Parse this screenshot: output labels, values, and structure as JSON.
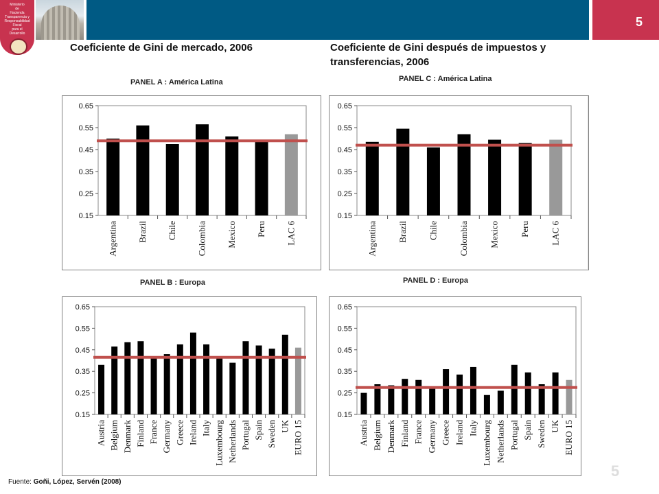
{
  "header": {
    "slide_number": "5",
    "logo_text": "Ministerio\nde\nHacienda\nTransparencia y\nResponsabilidad\nFiscal\npara el\nDesarrollo"
  },
  "titles": {
    "left": "Coeficiente de Gini de mercado, 2006",
    "right": "Coeficiente de Gini después de impuestos y transferencias, 2006"
  },
  "source": {
    "label": "Fuente:",
    "text": "Goñi, López, Servén (2008)"
  },
  "footer_page": "5",
  "colors": {
    "bar": "#000000",
    "aggregate_bar": "#999999",
    "average_line": "#c0504d",
    "header_blue": "#005a84",
    "header_red": "#c8334f"
  },
  "chart_data": [
    {
      "type": "bar",
      "title": "PANEL A : América Latina",
      "categories": [
        "Argentina",
        "Brazil",
        "Chile",
        "Colombia",
        "Mexico",
        "Peru",
        "LAC 6"
      ],
      "values": [
        0.5,
        0.56,
        0.475,
        0.565,
        0.51,
        0.485,
        0.52
      ],
      "highlight_last": true,
      "reference_line": 0.49,
      "ylim": [
        0.15,
        0.65
      ],
      "yticks": [
        "0.15",
        "0.25",
        "0.35",
        "0.45",
        "0.55",
        "0.65"
      ],
      "grid": false
    },
    {
      "type": "bar",
      "title": "PANEL B : Europa",
      "categories": [
        "Austria",
        "Belgium",
        "Denmark",
        "Finland",
        "France",
        "Germany",
        "Greece",
        "Ireland",
        "Italy",
        "Luxembourg",
        "Netherlands",
        "Portugal",
        "Spain",
        "Sweden",
        "UK",
        "EURO 15"
      ],
      "values": [
        0.38,
        0.465,
        0.485,
        0.49,
        0.41,
        0.43,
        0.475,
        0.53,
        0.475,
        0.41,
        0.39,
        0.49,
        0.47,
        0.455,
        0.52,
        0.46
      ],
      "highlight_last": true,
      "reference_line": 0.415,
      "ylim": [
        0.15,
        0.65
      ],
      "yticks": [
        "0.15",
        "0.25",
        "0.35",
        "0.45",
        "0.55",
        "0.65"
      ],
      "grid": false
    },
    {
      "type": "bar",
      "title": "PANEL C : América Latina",
      "categories": [
        "Argentina",
        "Brazil",
        "Chile",
        "Colombia",
        "Mexico",
        "Peru",
        "LAC 6"
      ],
      "values": [
        0.485,
        0.545,
        0.46,
        0.52,
        0.495,
        0.48,
        0.495
      ],
      "highlight_last": true,
      "reference_line": 0.47,
      "ylim": [
        0.15,
        0.65
      ],
      "yticks": [
        "0.15",
        "0.25",
        "0.35",
        "0.45",
        "0.55",
        "0.65"
      ],
      "grid": false
    },
    {
      "type": "bar",
      "title": "PANEL D : Europa",
      "categories": [
        "Austria",
        "Belgium",
        "Denmark",
        "Finland",
        "France",
        "Germany",
        "Greece",
        "Ireland",
        "Italy",
        "Luxembourg",
        "Netherlands",
        "Portugal",
        "Spain",
        "Sweden",
        "UK",
        "EURO 15"
      ],
      "values": [
        0.25,
        0.29,
        0.285,
        0.315,
        0.31,
        0.28,
        0.36,
        0.335,
        0.37,
        0.24,
        0.26,
        0.38,
        0.345,
        0.29,
        0.345,
        0.31
      ],
      "highlight_last": true,
      "reference_line": 0.275,
      "ylim": [
        0.15,
        0.65
      ],
      "yticks": [
        "0.15",
        "0.25",
        "0.35",
        "0.45",
        "0.55",
        "0.65"
      ],
      "grid": false
    }
  ]
}
